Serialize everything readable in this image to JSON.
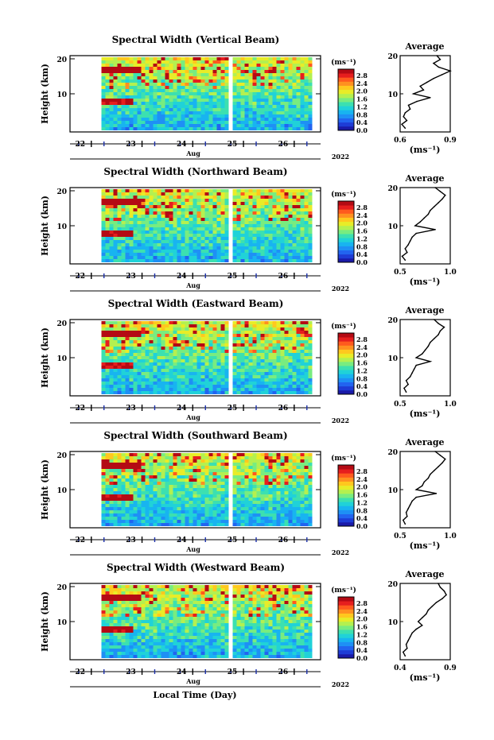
{
  "figure": {
    "xlabel": "Local Time (Day)",
    "month_label": "Aug",
    "year_label": "2022",
    "ylabel": "Height (km)",
    "average_title": "Average",
    "unit_label": "(ms⁻¹)",
    "colorbar_ticks": [
      "0.0",
      "0.4",
      "0.8",
      "1.2",
      "1.6",
      "2.0",
      "2.4",
      "2.8"
    ],
    "colorbar_colors": [
      "#1a1aa8",
      "#1e3cd6",
      "#2264f0",
      "#1e90f5",
      "#18b4f0",
      "#20d2d8",
      "#3ce0b0",
      "#78ec80",
      "#b4f050",
      "#e8ec28",
      "#ffc81e",
      "#ff9020",
      "#ff5a1e",
      "#e61e1e",
      "#b40a14"
    ]
  },
  "chart_data": [
    {
      "type": "heatmap",
      "title": "Spectral Width (Vertical Beam)",
      "x_ticks": [
        "22",
        "23",
        "24",
        "25",
        "26"
      ],
      "y_ticks": [
        10,
        20
      ],
      "ylim": [
        0,
        20
      ],
      "colorbar_range": [
        0.0,
        2.8
      ],
      "data_gaps": [
        [
          21.4,
          22.2
        ],
        [
          24.65,
          24.78
        ]
      ],
      "average": {
        "xlim": [
          0.6,
          0.9
        ],
        "x_ticks": [
          "0.6",
          "0.9"
        ],
        "ylim": [
          0,
          20
        ],
        "heights": [
          1,
          2,
          3,
          4,
          5,
          6,
          7,
          8,
          9,
          10,
          11,
          12,
          13,
          14,
          15,
          16,
          17,
          18,
          19,
          20
        ],
        "values": [
          0.63,
          0.61,
          0.64,
          0.62,
          0.63,
          0.66,
          0.65,
          0.7,
          0.78,
          0.68,
          0.74,
          0.72,
          0.76,
          0.8,
          0.85,
          0.9,
          0.83,
          0.8,
          0.84,
          0.82
        ]
      }
    },
    {
      "type": "heatmap",
      "title": "Spectral Width (Northward Beam)",
      "x_ticks": [
        "22",
        "23",
        "24",
        "25",
        "26"
      ],
      "y_ticks": [
        10,
        20
      ],
      "ylim": [
        0,
        20
      ],
      "colorbar_range": [
        0.0,
        2.8
      ],
      "data_gaps": [
        [
          21.4,
          22.2
        ],
        [
          24.65,
          24.78
        ]
      ],
      "average": {
        "xlim": [
          0.5,
          1.0
        ],
        "x_ticks": [
          "0.5",
          "1.0"
        ],
        "ylim": [
          0,
          20
        ],
        "heights": [
          1,
          2,
          3,
          4,
          5,
          6,
          7,
          8,
          9,
          10,
          11,
          12,
          13,
          14,
          15,
          16,
          17,
          18,
          19,
          20
        ],
        "values": [
          0.55,
          0.52,
          0.57,
          0.55,
          0.58,
          0.6,
          0.62,
          0.66,
          0.85,
          0.65,
          0.7,
          0.74,
          0.78,
          0.8,
          0.84,
          0.88,
          0.92,
          0.95,
          0.9,
          0.85
        ]
      }
    },
    {
      "type": "heatmap",
      "title": "Spectral Width (Eastward Beam)",
      "x_ticks": [
        "22",
        "23",
        "24",
        "25",
        "26"
      ],
      "y_ticks": [
        10,
        20
      ],
      "ylim": [
        0,
        20
      ],
      "colorbar_range": [
        0.0,
        2.8
      ],
      "data_gaps": [
        [
          21.4,
          22.2
        ],
        [
          24.65,
          24.78
        ]
      ],
      "average": {
        "xlim": [
          0.5,
          1.0
        ],
        "x_ticks": [
          "0.5",
          "1.0"
        ],
        "ylim": [
          0,
          20
        ],
        "heights": [
          1,
          2,
          3,
          4,
          5,
          6,
          7,
          8,
          9,
          10,
          11,
          12,
          13,
          14,
          15,
          16,
          17,
          18,
          19,
          20
        ],
        "values": [
          0.56,
          0.54,
          0.58,
          0.56,
          0.6,
          0.62,
          0.64,
          0.66,
          0.8,
          0.66,
          0.72,
          0.75,
          0.78,
          0.8,
          0.84,
          0.88,
          0.9,
          0.94,
          0.88,
          0.84
        ]
      }
    },
    {
      "type": "heatmap",
      "title": "Spectral Width (Southward Beam)",
      "x_ticks": [
        "22",
        "23",
        "24",
        "25",
        "26"
      ],
      "y_ticks": [
        10,
        20
      ],
      "ylim": [
        0,
        20
      ],
      "colorbar_range": [
        0.0,
        2.8
      ],
      "data_gaps": [
        [
          21.4,
          22.2
        ],
        [
          24.65,
          24.78
        ]
      ],
      "average": {
        "xlim": [
          0.5,
          1.0
        ],
        "x_ticks": [
          "0.5",
          "1.0"
        ],
        "ylim": [
          0,
          20
        ],
        "heights": [
          1,
          2,
          3,
          4,
          5,
          6,
          7,
          8,
          9,
          10,
          11,
          12,
          13,
          14,
          15,
          16,
          17,
          18,
          19,
          20
        ],
        "values": [
          0.55,
          0.53,
          0.57,
          0.56,
          0.58,
          0.6,
          0.62,
          0.66,
          0.86,
          0.66,
          0.72,
          0.74,
          0.78,
          0.8,
          0.84,
          0.88,
          0.92,
          0.95,
          0.9,
          0.85
        ]
      }
    },
    {
      "type": "heatmap",
      "title": "Spectral Width (Westward Beam)",
      "x_ticks": [
        "22",
        "23",
        "24",
        "25",
        "26"
      ],
      "y_ticks": [
        10,
        20
      ],
      "ylim": [
        0,
        20
      ],
      "colorbar_range": [
        0.0,
        2.8
      ],
      "data_gaps": [
        [
          21.4,
          22.2
        ],
        [
          24.65,
          24.78
        ]
      ],
      "average": {
        "xlim": [
          0.4,
          0.9
        ],
        "x_ticks": [
          "0.4",
          "0.9"
        ],
        "ylim": [
          0,
          20
        ],
        "heights": [
          1,
          2,
          3,
          4,
          5,
          6,
          7,
          8,
          9,
          10,
          11,
          12,
          13,
          14,
          15,
          16,
          17,
          18,
          19,
          20
        ],
        "values": [
          0.45,
          0.43,
          0.47,
          0.46,
          0.48,
          0.5,
          0.52,
          0.56,
          0.62,
          0.58,
          0.62,
          0.66,
          0.68,
          0.72,
          0.76,
          0.82,
          0.86,
          0.84,
          0.8,
          0.78
        ]
      }
    }
  ]
}
